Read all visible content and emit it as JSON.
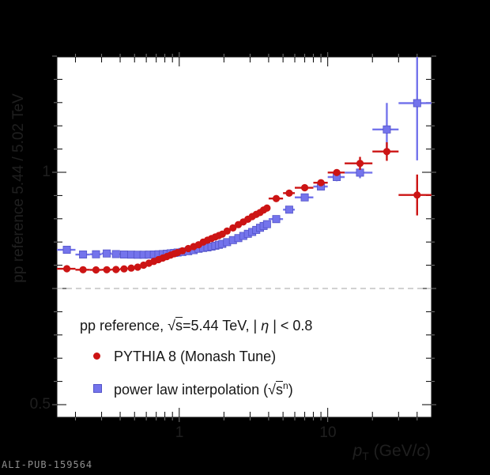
{
  "canvas": {
    "bg": "#000000",
    "plot_bg": "#ffffff"
  },
  "watermark": "ALI-PUB-159564",
  "axes": {
    "x": {
      "title_parts": {
        "p": "p",
        "sub": "T",
        "mid": " (GeV/",
        "c": "c",
        "end": ")"
      },
      "tick_labels": [
        {
          "value": 1,
          "text": "1"
        },
        {
          "value": 10,
          "text": "10"
        }
      ]
    },
    "y": {
      "title": "pp reference 5.44 / 5.02 TeV",
      "tick_labels": [
        {
          "value": 1,
          "text": "1"
        },
        {
          "value": 0.5,
          "text": "0.5"
        }
      ]
    }
  },
  "legend": {
    "header": {
      "pre": "pp reference, ",
      "sqrt": "√",
      "s": "s",
      "mid": "=5.44 TeV, | ",
      "eta": "η",
      "post": " | < 0.8"
    },
    "entries": [
      {
        "label": "PYTHIA 8 (Monash Tune)",
        "marker": "circle",
        "color": "#cc1414"
      },
      {
        "label_pre": "power law interpolation (",
        "sqrt": "√",
        "s": "s",
        "sup": "n",
        "label_post": ")",
        "marker": "square",
        "color": "#7474ec"
      }
    ]
  },
  "chart_data": {
    "type": "scatter",
    "x_scale": "log",
    "x_range": [
      0.15,
      50
    ],
    "y_range": [
      0.4728,
      1.2483
    ],
    "grid": false,
    "x_major_ticks": [
      1,
      10
    ],
    "x_minor_ticks": [
      0.2,
      0.3,
      0.4,
      0.5,
      0.6,
      0.7,
      0.8,
      0.9,
      2,
      3,
      4,
      5,
      6,
      7,
      8,
      9,
      20,
      30,
      40
    ],
    "y_major_ticks": [
      0.5,
      0.75,
      1.0,
      1.25
    ],
    "y_minor_ticks": [
      0.55,
      0.6,
      0.65,
      0.7,
      0.8,
      0.85,
      0.9,
      0.95,
      1.05,
      1.1,
      1.15,
      1.2
    ],
    "reference_line_y": 0.75,
    "reference_line_color": "#a3a3a3",
    "xlabel": "pT (GeV/c)",
    "ylabel": "pp reference 5.44 / 5.02 TeV",
    "bin_edges": [
      0.15,
      0.2,
      0.25,
      0.3,
      0.35,
      0.4,
      0.45,
      0.5,
      0.55,
      0.6,
      0.65,
      0.7,
      0.75,
      0.8,
      0.85,
      0.9,
      0.95,
      1,
      1.1,
      1.2,
      1.3,
      1.4,
      1.5,
      1.6,
      1.7,
      1.8,
      1.9,
      2,
      2.2,
      2.4,
      2.6,
      2.8,
      3,
      3.2,
      3.4,
      3.6,
      3.8,
      4,
      5,
      6,
      8,
      10,
      13,
      20,
      30,
      50
    ],
    "series": [
      {
        "name": "PYTHIA 8 (Monash Tune)",
        "marker": "circle",
        "color": "#cc1414",
        "stroke": "#b01010",
        "values": [
          0.7925,
          0.7903,
          0.79,
          0.7903,
          0.7908,
          0.7922,
          0.7939,
          0.7959,
          0.8002,
          0.8044,
          0.8083,
          0.8121,
          0.8155,
          0.8187,
          0.8218,
          0.8247,
          0.8274,
          0.8311,
          0.8359,
          0.8401,
          0.8441,
          0.8498,
          0.8539,
          0.8575,
          0.8609,
          0.8639,
          0.867,
          0.8736,
          0.8803,
          0.8874,
          0.8932,
          0.899,
          0.9048,
          0.9095,
          0.9134,
          0.9189,
          0.9231,
          0.9435,
          0.9552,
          0.9668,
          0.9776,
          0.9995,
          1.0192,
          1.0447,
          0.9512
        ],
        "yerr": [
          0,
          0,
          0,
          0,
          0,
          0,
          0,
          0,
          0,
          0,
          0,
          0,
          0,
          0,
          0,
          0,
          0,
          0,
          0,
          0,
          0,
          0,
          0,
          0,
          0,
          0,
          0,
          0,
          0,
          0,
          0,
          0,
          0,
          0,
          0,
          0,
          0,
          0,
          0,
          0,
          0,
          0.007,
          0.014,
          0.02,
          0.044
        ]
      },
      {
        "name": "power law interpolation (sqrt(s)^n)",
        "marker": "square",
        "color": "#7474ec",
        "stroke": "#5353c8",
        "values": [
          0.8333,
          0.8231,
          0.8236,
          0.8253,
          0.824,
          0.8231,
          0.8228,
          0.8226,
          0.8226,
          0.8228,
          0.8231,
          0.8236,
          0.8241,
          0.8248,
          0.8257,
          0.8265,
          0.8274,
          0.8286,
          0.8303,
          0.8325,
          0.8355,
          0.8372,
          0.8384,
          0.8401,
          0.842,
          0.844,
          0.846,
          0.8497,
          0.8541,
          0.8584,
          0.8631,
          0.8677,
          0.8716,
          0.876,
          0.8806,
          0.8845,
          0.8884,
          0.8993,
          0.9196,
          0.946,
          0.9694,
          0.9898,
          0.9993,
          1.0922,
          1.1488
        ],
        "yerr": [
          0,
          0,
          0,
          0,
          0,
          0,
          0,
          0,
          0,
          0,
          0,
          0,
          0,
          0,
          0,
          0,
          0,
          0,
          0,
          0,
          0,
          0,
          0,
          0,
          0,
          0,
          0,
          0,
          0,
          0,
          0,
          0,
          0,
          0,
          0,
          0,
          0,
          0,
          0,
          0,
          0.007,
          0.009,
          0.012,
          0.057,
          0.123
        ]
      }
    ]
  }
}
